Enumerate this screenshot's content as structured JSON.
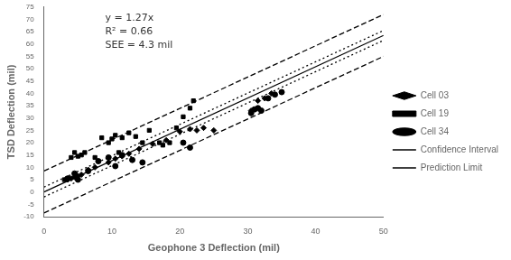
{
  "chart_data": {
    "type": "scatter",
    "title": "",
    "xlabel": "Geophone 3 Deflection (mil)",
    "ylabel": "TSD Deflection (mil)",
    "xlim": [
      0,
      50
    ],
    "ylim": [
      -10,
      75
    ],
    "xticks": [
      0,
      10,
      20,
      30,
      40,
      50
    ],
    "yticks": [
      -10,
      -5,
      0,
      5,
      10,
      15,
      20,
      25,
      30,
      35,
      40,
      45,
      50,
      55,
      60,
      65,
      70,
      75
    ],
    "grid": false,
    "legend": "right",
    "annotation": "y = 1.27x\nR² = 0.66\nSEE = 4.3 mil",
    "series": [
      {
        "name": "Cell 03",
        "type": "scatter",
        "marker": "diamond",
        "color": "#000000",
        "x": [
          3.5,
          4.0,
          4.5,
          5.0,
          5.5,
          6.5,
          7.5,
          9.5,
          10.5,
          11.5,
          12.5,
          14.0,
          16.0,
          18.0,
          20.0,
          21.5,
          22.5,
          23.5,
          25.0,
          30.5,
          31.5,
          32.5,
          33.5,
          35.0
        ],
        "values": [
          5.0,
          5.5,
          6.0,
          6.5,
          7.0,
          9.0,
          10.0,
          12.0,
          13.5,
          14.5,
          15.5,
          17.5,
          19.5,
          21.0,
          24.5,
          25.5,
          25.0,
          26.0,
          25.0,
          33.0,
          37.0,
          38.0,
          40.0,
          40.5
        ]
      },
      {
        "name": "Cell 19",
        "type": "scatter",
        "marker": "square",
        "color": "#000000",
        "x": [
          3.0,
          3.5,
          4.0,
          4.5,
          5.0,
          5.5,
          6.0,
          7.5,
          8.5,
          9.5,
          10.0,
          10.5,
          11.0,
          11.5,
          12.5,
          13.5,
          14.5,
          15.5,
          17.0,
          17.5,
          18.5,
          19.5,
          20.5,
          21.5,
          22.0
        ],
        "values": [
          5.0,
          5.5,
          14.0,
          16.0,
          14.5,
          15.0,
          16.0,
          14.0,
          22.0,
          20.0,
          21.5,
          23.0,
          16.0,
          22.0,
          24.0,
          22.5,
          20.0,
          25.0,
          20.0,
          19.0,
          20.0,
          26.0,
          30.5,
          34.0,
          37.0
        ]
      },
      {
        "name": "Cell 34",
        "type": "scatter",
        "marker": "circle",
        "color": "#000000",
        "x": [
          3.5,
          4.5,
          5.0,
          6.5,
          8.0,
          9.5,
          10.5,
          11.5,
          13.0,
          14.5,
          20.5,
          21.5,
          30.5,
          31.0,
          31.5,
          32.0,
          33.0,
          34.0,
          35.0
        ],
        "values": [
          5.5,
          7.5,
          5.0,
          8.5,
          12.5,
          14.0,
          10.5,
          15.0,
          13.0,
          12.0,
          20.0,
          18.0,
          32.0,
          33.5,
          34.0,
          33.0,
          38.0,
          39.5,
          40.5
        ]
      },
      {
        "name": "Confidence Interval",
        "type": "line",
        "line_style": "dotted",
        "color": "#000000",
        "x": [
          0,
          50
        ],
        "values": [
          2.0,
          65.5
        ]
      },
      {
        "name": "Confidence Interval",
        "type": "line",
        "line_style": "dotted",
        "color": "#000000",
        "x": [
          0,
          50
        ],
        "values": [
          -2.0,
          61.5
        ]
      },
      {
        "name": "Prediction Limit",
        "type": "line",
        "line_style": "dashed",
        "color": "#000000",
        "x": [
          0,
          50
        ],
        "values": [
          8.5,
          72.0
        ]
      },
      {
        "name": "Prediction Limit",
        "type": "line",
        "line_style": "dashed",
        "color": "#000000",
        "x": [
          0,
          50
        ],
        "values": [
          -8.5,
          55.0
        ]
      },
      {
        "type": "line",
        "line_style": "solid",
        "color": "#000000",
        "x": [
          0,
          50
        ],
        "values": [
          0,
          63.5
        ]
      }
    ]
  }
}
